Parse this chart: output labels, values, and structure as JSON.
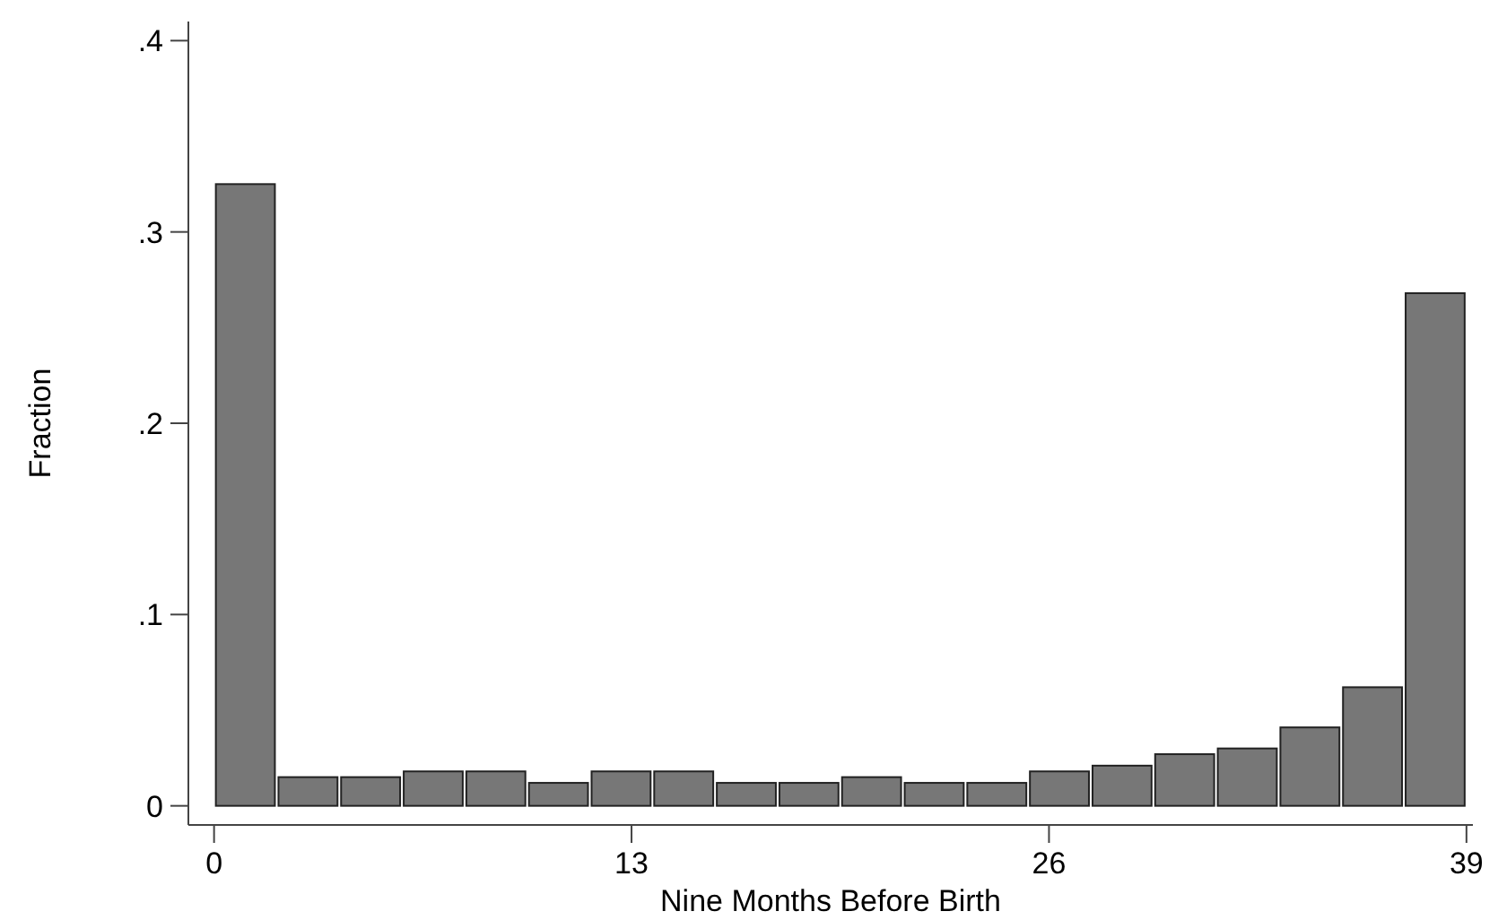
{
  "chart_data": {
    "type": "histogram",
    "xlabel": "Nine Months Before Birth",
    "ylabel": "Fraction",
    "bins": [
      0,
      1.95,
      3.9,
      5.85,
      7.8,
      9.75,
      11.7,
      13.65,
      15.6,
      17.55,
      19.5,
      21.45,
      23.4,
      25.35,
      27.3,
      29.25,
      31.2,
      33.15,
      35.1,
      37.05,
      39
    ],
    "values": [
      0.325,
      0.015,
      0.015,
      0.018,
      0.018,
      0.012,
      0.018,
      0.018,
      0.012,
      0.012,
      0.015,
      0.012,
      0.012,
      0.018,
      0.021,
      0.027,
      0.03,
      0.041,
      0.062,
      0.268
    ],
    "color": "#777777",
    "xlim": [
      -0.8,
      39.2
    ],
    "xticks": [
      0,
      13,
      26,
      39
    ],
    "ylim": [
      -0.01,
      0.41
    ],
    "yticks": [
      0,
      {
        "value": 0.1,
        "label": ".1"
      },
      {
        "value": 0.2,
        "label": ".2"
      },
      {
        "value": 0.3,
        "label": ".3"
      },
      {
        "value": 0.4,
        "label": ".4"
      }
    ],
    "grid": false
  }
}
